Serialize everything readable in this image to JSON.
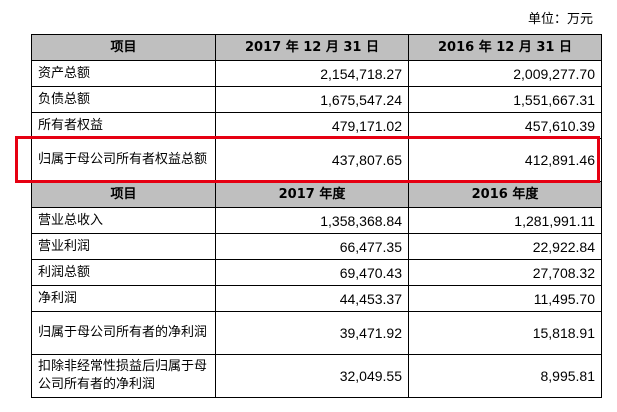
{
  "unit_note": "单位：万元",
  "balance_header": {
    "item": "项目",
    "col_2017": "2017 年 12 月 31 日",
    "col_2016": "2016 年 12 月 31 日"
  },
  "balance_rows": [
    {
      "label": "资产总额",
      "v2017": "2,154,718.27",
      "v2016": "2,009,277.70"
    },
    {
      "label": "负债总额",
      "v2017": "1,675,547.24",
      "v2016": "1,551,667.31"
    },
    {
      "label": "所有者权益",
      "v2017": "479,171.02",
      "v2016": "457,610.39"
    },
    {
      "label": "归属于母公司所有者权益总额",
      "v2017": "437,807.65",
      "v2016": "412,891.46"
    }
  ],
  "income_header": {
    "item": "项目",
    "col_2017": "2017 年度",
    "col_2016": "2016 年度"
  },
  "income_rows": [
    {
      "label": "营业总收入",
      "v2017": "1,358,368.84",
      "v2016": "1,281,991.11"
    },
    {
      "label": "营业利润",
      "v2017": "66,477.35",
      "v2016": "22,922.84"
    },
    {
      "label": "利润总额",
      "v2017": "69,470.43",
      "v2016": "27,708.32"
    },
    {
      "label": "净利润",
      "v2017": "44,453.37",
      "v2016": "11,495.70"
    },
    {
      "label": "归属于母公司所有者的净利润",
      "v2017": "39,471.92",
      "v2016": "15,818.91"
    },
    {
      "label": "扣除非经常性损益后归属于母公司所有者的净利润",
      "v2017": "32,049.55",
      "v2016": "8,995.81"
    }
  ],
  "colors": {
    "header_bg": "#bfbfbf",
    "highlight_border": "#e60012"
  }
}
